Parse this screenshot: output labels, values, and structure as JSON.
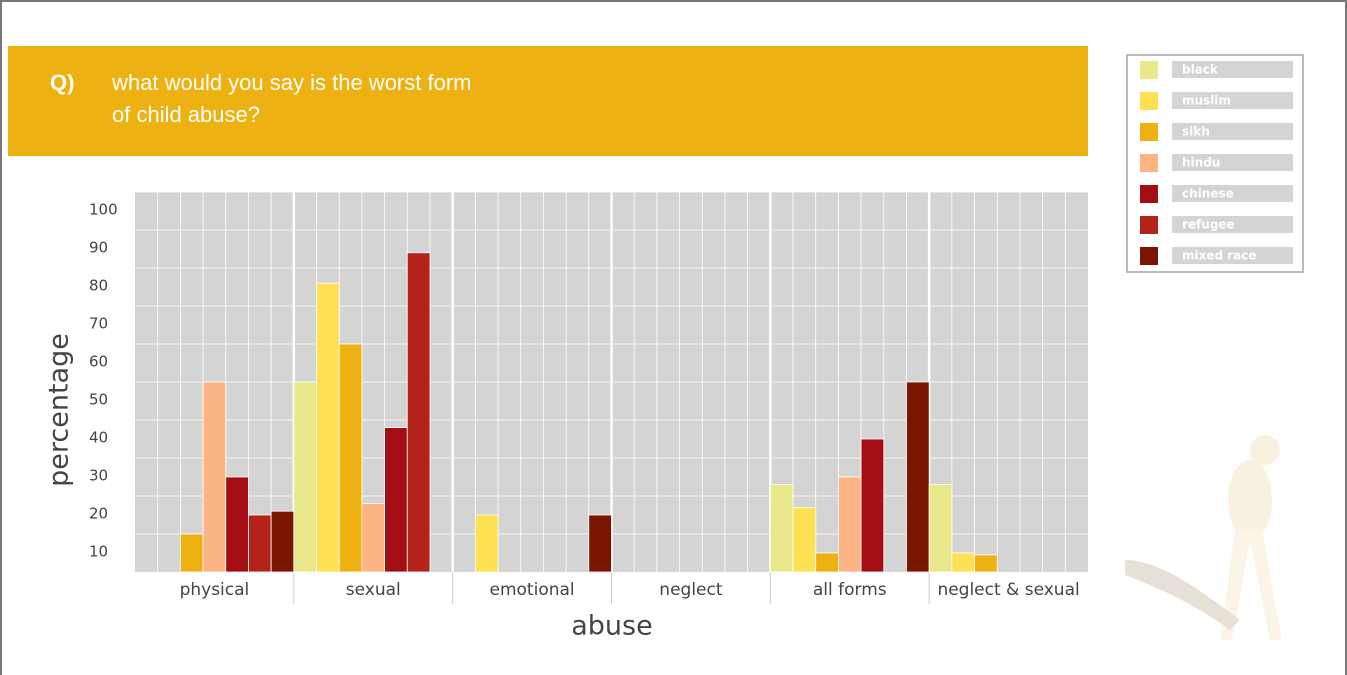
{
  "chart_data": {
    "type": "bar",
    "title_prefix": "Q)",
    "title_lines": [
      "what would you say is the worst form",
      "of child abuse?"
    ],
    "x_label": "abuse",
    "y_label": "percentage",
    "categories": [
      "physical",
      "sexual",
      "emotional",
      "neglect",
      "all forms",
      "neglect & sexual"
    ],
    "series": [
      {
        "name": "black",
        "color": "#e9e98c",
        "values": [
          0,
          50,
          0,
          0,
          23,
          23
        ]
      },
      {
        "name": "muslim",
        "color": "#fde152",
        "values": [
          0,
          76,
          15,
          0,
          17,
          5
        ]
      },
      {
        "name": "sikh",
        "color": "#eeb112",
        "values": [
          10,
          60,
          0,
          0,
          5,
          4.5
        ]
      },
      {
        "name": "hindu",
        "color": "#fbb483",
        "values": [
          50,
          18,
          0,
          0,
          25,
          0
        ]
      },
      {
        "name": "chinese",
        "color": "#a20e14",
        "values": [
          25,
          38,
          0,
          0,
          35,
          0
        ]
      },
      {
        "name": "refugee",
        "color": "#b4231a",
        "values": [
          15,
          84,
          0,
          0,
          0,
          0
        ]
      },
      {
        "name": "mixed race",
        "color": "#7a1600",
        "values": [
          16,
          0,
          15,
          0,
          50,
          0
        ]
      }
    ],
    "ylim": [
      0,
      100
    ],
    "yticks": [
      10,
      20,
      30,
      40,
      50,
      60,
      70,
      80,
      90,
      100
    ],
    "grid": true
  }
}
